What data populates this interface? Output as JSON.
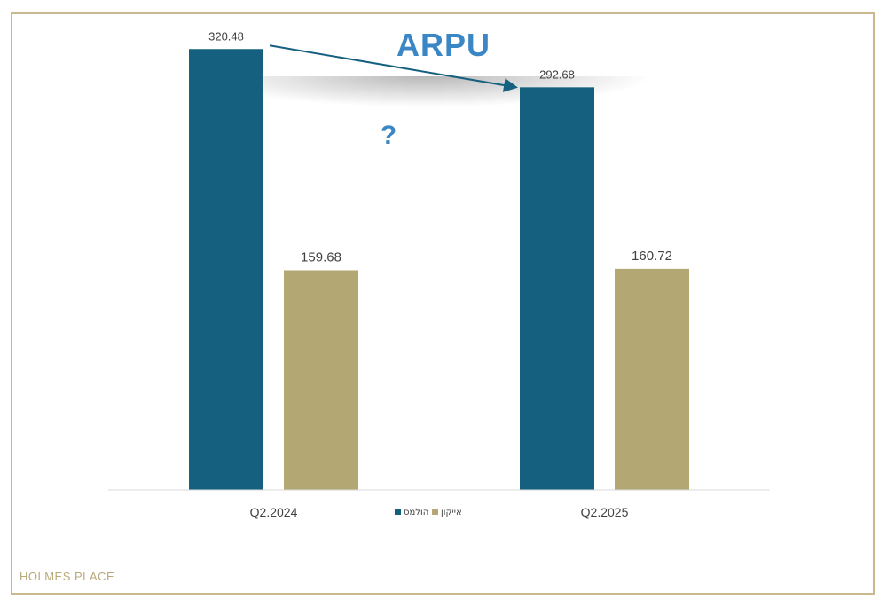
{
  "chart_data": {
    "type": "bar",
    "title": "ARPU",
    "categories": [
      "Q2.2024",
      "Q2.2025"
    ],
    "series": [
      {
        "name": "הולמס",
        "color": "#15607f",
        "values": [
          320.48,
          292.68
        ]
      },
      {
        "name": "אייקון",
        "color": "#b3a774",
        "values": [
          159.68,
          160.72
        ]
      }
    ],
    "ylim": [
      0,
      340
    ],
    "grid": false,
    "legend": "bottom-center",
    "annotation": {
      "text": "?",
      "color": "#3b86c4",
      "arrow_color": "#15607f"
    }
  },
  "footer": {
    "brand": "HOLMES PLACE"
  }
}
